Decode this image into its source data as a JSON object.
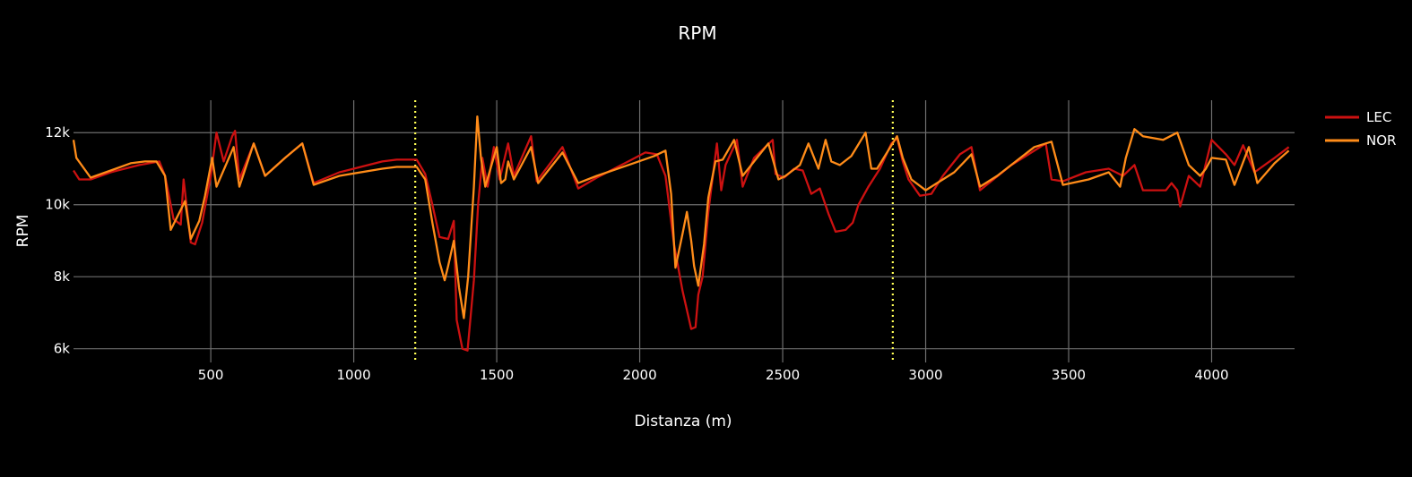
{
  "chart_data": {
    "type": "line",
    "title": "RPM",
    "xlabel": "Distanza (m)",
    "ylabel": "RPM",
    "xlim": [
      20,
      4290
    ],
    "ylim": [
      5620,
      12900
    ],
    "x_ticks": [
      500,
      1000,
      1500,
      2000,
      2500,
      3000,
      3500,
      4000
    ],
    "x_tick_labels": [
      "500",
      "1000",
      "1500",
      "2000",
      "2500",
      "3000",
      "3500",
      "4000"
    ],
    "y_ticks": [
      6000,
      8000,
      10000,
      12000
    ],
    "y_tick_labels": [
      "6k",
      "8k",
      "10k",
      "12k"
    ],
    "grid": true,
    "legend_position": "top-right",
    "background": "#000000",
    "grid_color": "#6e6e6e",
    "reference_lines": [
      {
        "x": 1215,
        "color": "#ffff55",
        "style": "dotted"
      },
      {
        "x": 2885,
        "color": "#ffff55",
        "style": "dotted"
      }
    ],
    "series": [
      {
        "name": "LEC",
        "color": "#cc1111",
        "points": [
          [
            20,
            10950
          ],
          [
            40,
            10700
          ],
          [
            80,
            10700
          ],
          [
            150,
            10900
          ],
          [
            250,
            11100
          ],
          [
            320,
            11200
          ],
          [
            340,
            10800
          ],
          [
            370,
            9600
          ],
          [
            395,
            9450
          ],
          [
            405,
            10700
          ],
          [
            430,
            8950
          ],
          [
            445,
            8900
          ],
          [
            470,
            9500
          ],
          [
            500,
            10800
          ],
          [
            520,
            12000
          ],
          [
            545,
            11200
          ],
          [
            575,
            11900
          ],
          [
            585,
            12050
          ],
          [
            600,
            10700
          ],
          [
            650,
            11700
          ],
          [
            690,
            10800
          ],
          [
            760,
            11300
          ],
          [
            820,
            11700
          ],
          [
            860,
            10600
          ],
          [
            950,
            10900
          ],
          [
            1100,
            11200
          ],
          [
            1150,
            11250
          ],
          [
            1220,
            11250
          ],
          [
            1250,
            10850
          ],
          [
            1275,
            10000
          ],
          [
            1300,
            9100
          ],
          [
            1330,
            9050
          ],
          [
            1350,
            9550
          ],
          [
            1360,
            6800
          ],
          [
            1380,
            6000
          ],
          [
            1398,
            5950
          ],
          [
            1420,
            7900
          ],
          [
            1435,
            10000
          ],
          [
            1450,
            11300
          ],
          [
            1468,
            10500
          ],
          [
            1490,
            11600
          ],
          [
            1510,
            10700
          ],
          [
            1540,
            11700
          ],
          [
            1560,
            10800
          ],
          [
            1620,
            11900
          ],
          [
            1640,
            10650
          ],
          [
            1730,
            11600
          ],
          [
            1785,
            10450
          ],
          [
            1850,
            10750
          ],
          [
            1960,
            11200
          ],
          [
            2020,
            11450
          ],
          [
            2060,
            11400
          ],
          [
            2090,
            10800
          ],
          [
            2120,
            8900
          ],
          [
            2150,
            7600
          ],
          [
            2170,
            6900
          ],
          [
            2180,
            6550
          ],
          [
            2195,
            6600
          ],
          [
            2205,
            7500
          ],
          [
            2220,
            8000
          ],
          [
            2240,
            9800
          ],
          [
            2270,
            11700
          ],
          [
            2285,
            10400
          ],
          [
            2300,
            11100
          ],
          [
            2340,
            11800
          ],
          [
            2360,
            10500
          ],
          [
            2400,
            11300
          ],
          [
            2465,
            11800
          ],
          [
            2475,
            10850
          ],
          [
            2505,
            10750
          ],
          [
            2540,
            11000
          ],
          [
            2570,
            10950
          ],
          [
            2600,
            10300
          ],
          [
            2630,
            10450
          ],
          [
            2660,
            9750
          ],
          [
            2685,
            9250
          ],
          [
            2720,
            9300
          ],
          [
            2745,
            9500
          ],
          [
            2765,
            10000
          ],
          [
            2800,
            10500
          ],
          [
            2840,
            11000
          ],
          [
            2880,
            11700
          ],
          [
            2900,
            11850
          ],
          [
            2920,
            11200
          ],
          [
            2940,
            10700
          ],
          [
            2980,
            10250
          ],
          [
            3020,
            10300
          ],
          [
            3060,
            10800
          ],
          [
            3120,
            11400
          ],
          [
            3160,
            11600
          ],
          [
            3190,
            10400
          ],
          [
            3300,
            11100
          ],
          [
            3420,
            11700
          ],
          [
            3440,
            10700
          ],
          [
            3480,
            10650
          ],
          [
            3560,
            10900
          ],
          [
            3640,
            11000
          ],
          [
            3690,
            10800
          ],
          [
            3730,
            11100
          ],
          [
            3760,
            10400
          ],
          [
            3840,
            10400
          ],
          [
            3860,
            10600
          ],
          [
            3880,
            10400
          ],
          [
            3890,
            9950
          ],
          [
            3920,
            10800
          ],
          [
            3960,
            10500
          ],
          [
            4000,
            11800
          ],
          [
            4050,
            11400
          ],
          [
            4080,
            11100
          ],
          [
            4110,
            11650
          ],
          [
            4150,
            10900
          ],
          [
            4220,
            11300
          ],
          [
            4270,
            11600
          ]
        ]
      },
      {
        "name": "NOR",
        "color": "#ff8c19",
        "points": [
          [
            20,
            11800
          ],
          [
            30,
            11300
          ],
          [
            80,
            10750
          ],
          [
            150,
            10950
          ],
          [
            220,
            11150
          ],
          [
            270,
            11200
          ],
          [
            310,
            11200
          ],
          [
            340,
            10800
          ],
          [
            360,
            9300
          ],
          [
            410,
            10100
          ],
          [
            430,
            9050
          ],
          [
            460,
            9550
          ],
          [
            480,
            10250
          ],
          [
            505,
            11300
          ],
          [
            520,
            10500
          ],
          [
            580,
            11600
          ],
          [
            600,
            10500
          ],
          [
            650,
            11700
          ],
          [
            690,
            10800
          ],
          [
            760,
            11300
          ],
          [
            820,
            11700
          ],
          [
            860,
            10550
          ],
          [
            950,
            10800
          ],
          [
            1100,
            11000
          ],
          [
            1150,
            11050
          ],
          [
            1220,
            11050
          ],
          [
            1250,
            10700
          ],
          [
            1275,
            9500
          ],
          [
            1300,
            8400
          ],
          [
            1318,
            7900
          ],
          [
            1330,
            8300
          ],
          [
            1350,
            9000
          ],
          [
            1368,
            7700
          ],
          [
            1385,
            6850
          ],
          [
            1400,
            8000
          ],
          [
            1420,
            10500
          ],
          [
            1432,
            12450
          ],
          [
            1445,
            11300
          ],
          [
            1460,
            10500
          ],
          [
            1500,
            11600
          ],
          [
            1515,
            10600
          ],
          [
            1530,
            10700
          ],
          [
            1540,
            11200
          ],
          [
            1560,
            10700
          ],
          [
            1620,
            11600
          ],
          [
            1645,
            10600
          ],
          [
            1730,
            11450
          ],
          [
            1785,
            10600
          ],
          [
            1850,
            10800
          ],
          [
            1960,
            11100
          ],
          [
            2050,
            11350
          ],
          [
            2090,
            11500
          ],
          [
            2110,
            10300
          ],
          [
            2125,
            8250
          ],
          [
            2150,
            9200
          ],
          [
            2165,
            9800
          ],
          [
            2180,
            9000
          ],
          [
            2190,
            8300
          ],
          [
            2205,
            7750
          ],
          [
            2225,
            8900
          ],
          [
            2240,
            10200
          ],
          [
            2265,
            11200
          ],
          [
            2290,
            11250
          ],
          [
            2330,
            11800
          ],
          [
            2360,
            10800
          ],
          [
            2450,
            11700
          ],
          [
            2485,
            10700
          ],
          [
            2510,
            10800
          ],
          [
            2560,
            11100
          ],
          [
            2590,
            11700
          ],
          [
            2625,
            11000
          ],
          [
            2650,
            11800
          ],
          [
            2670,
            11200
          ],
          [
            2700,
            11100
          ],
          [
            2740,
            11350
          ],
          [
            2790,
            12000
          ],
          [
            2810,
            11000
          ],
          [
            2830,
            11000
          ],
          [
            2900,
            11900
          ],
          [
            2920,
            11300
          ],
          [
            2950,
            10700
          ],
          [
            3000,
            10400
          ],
          [
            3100,
            10900
          ],
          [
            3160,
            11400
          ],
          [
            3190,
            10500
          ],
          [
            3250,
            10800
          ],
          [
            3380,
            11600
          ],
          [
            3440,
            11750
          ],
          [
            3480,
            10550
          ],
          [
            3570,
            10700
          ],
          [
            3640,
            10900
          ],
          [
            3680,
            10500
          ],
          [
            3700,
            11300
          ],
          [
            3730,
            12100
          ],
          [
            3760,
            11900
          ],
          [
            3830,
            11800
          ],
          [
            3880,
            12000
          ],
          [
            3920,
            11100
          ],
          [
            3960,
            10800
          ],
          [
            3980,
            11000
          ],
          [
            4000,
            11300
          ],
          [
            4050,
            11250
          ],
          [
            4080,
            10550
          ],
          [
            4130,
            11600
          ],
          [
            4160,
            10600
          ],
          [
            4220,
            11150
          ],
          [
            4270,
            11500
          ]
        ]
      }
    ]
  }
}
